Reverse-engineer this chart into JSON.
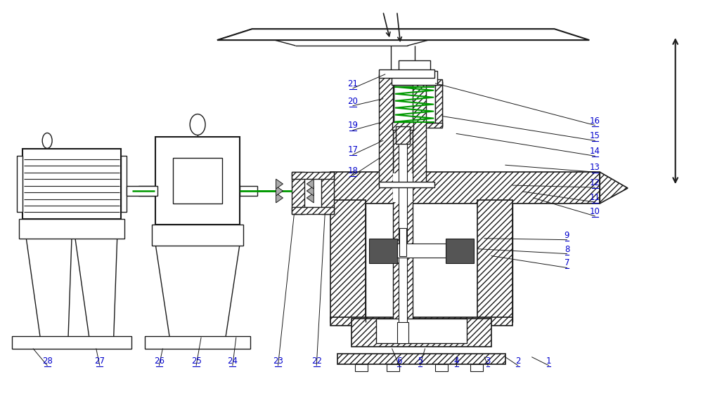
{
  "bg_color": "#ffffff",
  "line_color": "#1a1a1a",
  "green_color": "#009900",
  "label_color": "#0000cc",
  "figsize": [
    10.0,
    5.6
  ],
  "dpi": 100
}
